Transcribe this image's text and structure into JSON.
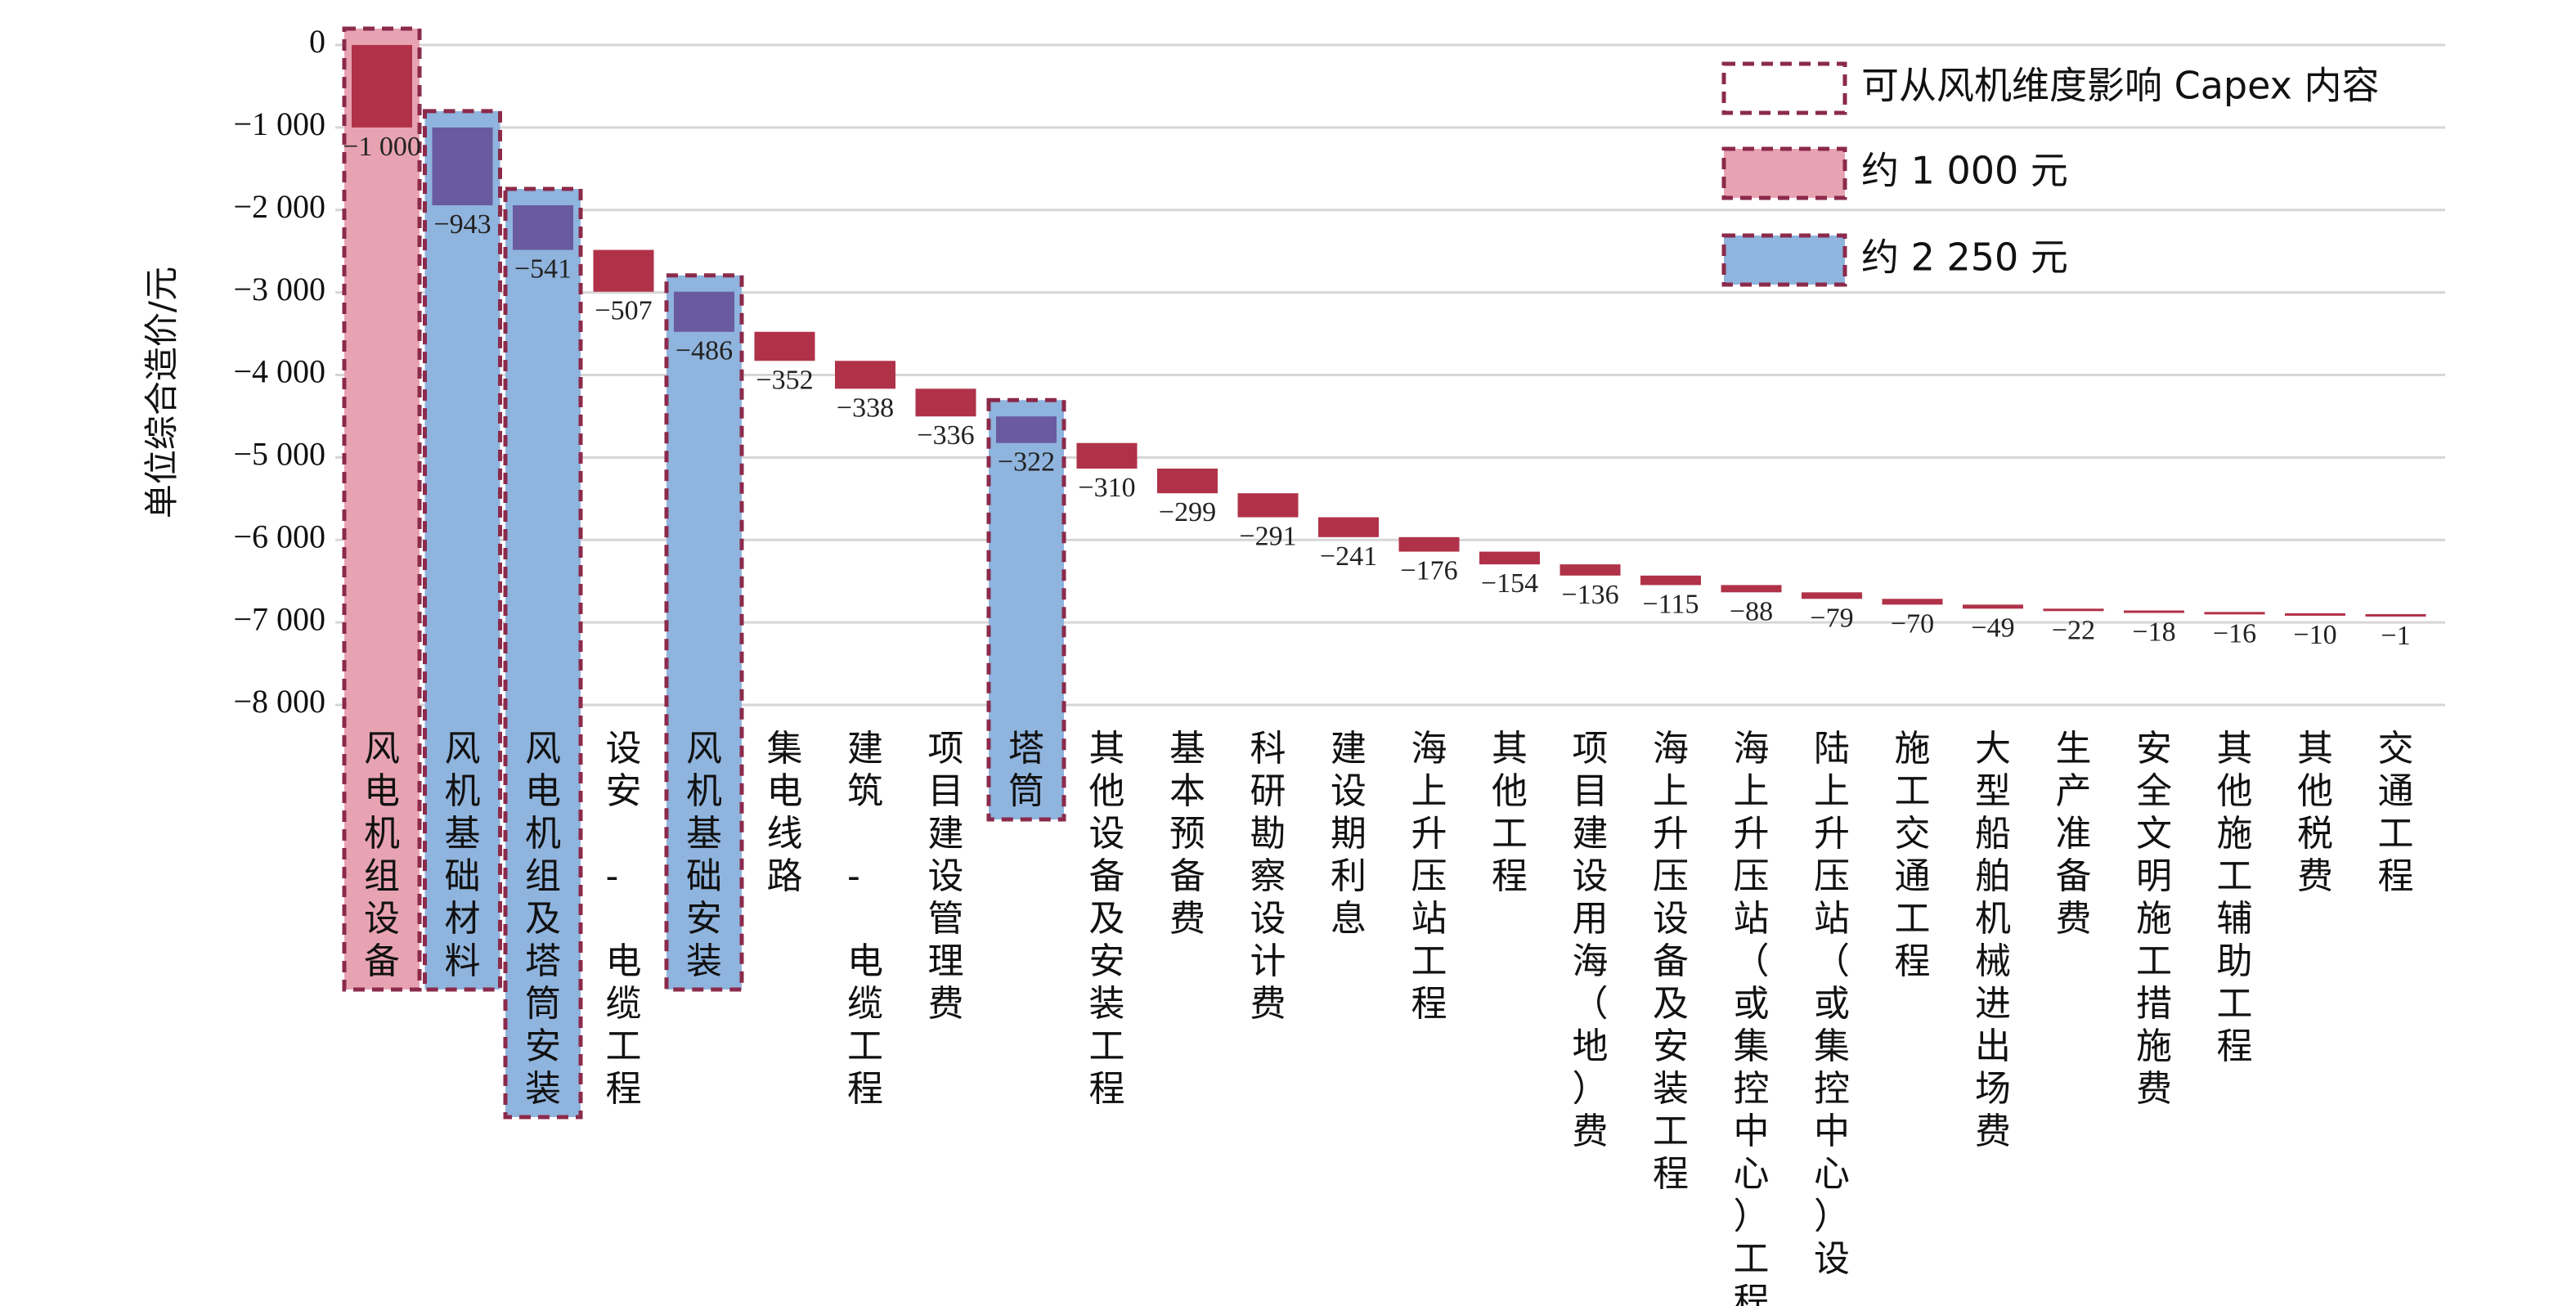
{
  "chart_data": {
    "type": "bar",
    "subtype": "waterfall",
    "ylabel": "单位综合造价/元",
    "ylim": [
      -8000,
      0
    ],
    "yticks": [
      0,
      -1000,
      -2000,
      -3000,
      -4000,
      -5000,
      -6000,
      -7000,
      -8000
    ],
    "ytick_labels": [
      "0",
      "−1 000",
      "−2 000",
      "−3 000",
      "−4 000",
      "−5 000",
      "−6 000",
      "−7 000",
      "−8 000"
    ],
    "grid": true,
    "legend_position": "top-right",
    "categories": [
      "风电机组设备",
      "风机基础材料",
      "风电机组及塔筒安装",
      "设安 - 电缆工程",
      "风机基础安装",
      "集电线路",
      "建筑 - 电缆工程",
      "项目建设管理费",
      "塔筒",
      "其他设备及安装工程",
      "基本预备费",
      "科研勘察设计费",
      "建设期利息",
      "海上升压站工程",
      "其他工程",
      "项目建设用海（地）费",
      "海上升压设备及安装工程",
      "海上升压站（或集控中心）工程",
      "陆上升压站（或集控中心）设…",
      "施工交通工程",
      "大型船舶机械进出场费",
      "生产准备费",
      "安全文明施工措施费",
      "其他施工辅助工程",
      "其他税费",
      "交通工程"
    ],
    "values": [
      -1000,
      -943,
      -541,
      -507,
      -486,
      -352,
      -338,
      -336,
      -322,
      -310,
      -299,
      -291,
      -241,
      -176,
      -154,
      -136,
      -115,
      -88,
      -79,
      -70,
      -49,
      -22,
      -18,
      -16,
      -10,
      -1
    ],
    "value_labels": [
      "−1 000",
      "−943",
      "−541",
      "−507",
      "−486",
      "−352",
      "−338",
      "−336",
      "−322",
      "−310",
      "−299",
      "−291",
      "−241",
      "−176",
      "−154",
      "−136",
      "−115",
      "−88",
      "−79",
      "−70",
      "−49",
      "−22",
      "−18",
      "−16",
      "−10",
      "−1"
    ],
    "highlight": [
      "pink",
      "blue",
      "blue",
      "none",
      "blue",
      "none",
      "none",
      "none",
      "blue",
      "none",
      "none",
      "none",
      "none",
      "none",
      "none",
      "none",
      "none",
      "none",
      "none",
      "none",
      "none",
      "none",
      "none",
      "none",
      "none",
      "none"
    ],
    "legend": [
      {
        "label": "可从风机维度影响 Capex 内容",
        "style": "dashed-outline"
      },
      {
        "label": "约 1 000 元",
        "style": "pink"
      },
      {
        "label": "约 2 250 元",
        "style": "blue"
      }
    ],
    "colors": {
      "bar": "#b03249",
      "bar_on_blue": "#6a5aa0",
      "pink_fill": "#e8a3b3",
      "blue_fill": "#8fb4de",
      "dash_outline": "#8b2a4b",
      "grid": "#d6d6d6"
    }
  }
}
